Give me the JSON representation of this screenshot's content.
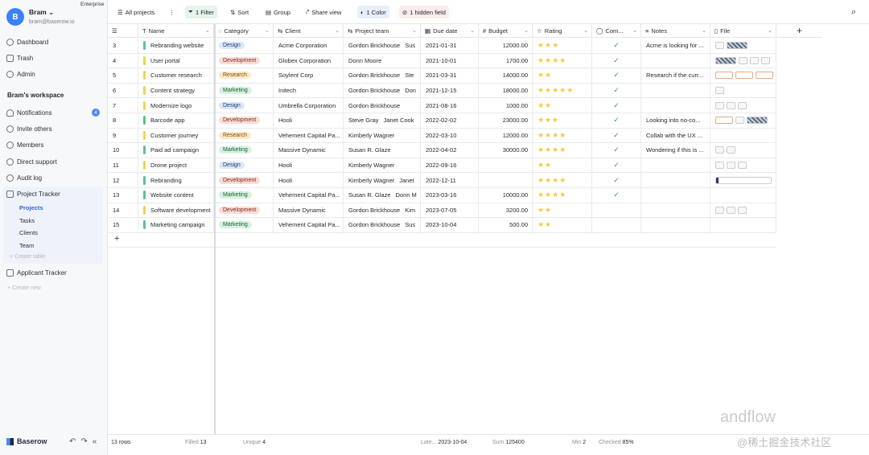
{
  "sidebar": {
    "avatar_letter": "B",
    "user_name": "Bram",
    "user_email": "bram@baserow.io",
    "plan": "Enterprise",
    "nav": [
      "Dashboard",
      "Trash",
      "Admin"
    ],
    "workspace_title": "Bram's workspace",
    "workspace_items": [
      "Notifications",
      "Invite others",
      "Members",
      "Direct support",
      "Audit log"
    ],
    "notifications_count": "4",
    "database": "Project Tracker",
    "tables": [
      "Projects",
      "Tasks",
      "Clients",
      "Team"
    ],
    "create_table": "+ Create table",
    "database2": "Applicant Tracker",
    "create_new": "+ Create new",
    "brand": "Baserow"
  },
  "toolbar": {
    "view": "All projects",
    "filter": "1 Filter",
    "sort": "Sort",
    "group": "Group",
    "share": "Share view",
    "color": "1 Color",
    "hidden": "1 hidden field"
  },
  "columns": {
    "name": "Name",
    "category": "Category",
    "client": "Client",
    "team": "Project team",
    "due": "Due date",
    "budget": "Budget",
    "rating": "Rating",
    "completed": "Com...",
    "notes": "Notes",
    "file": "File"
  },
  "rows": [
    {
      "id": "3",
      "name": "Rebranding website",
      "category": "Design",
      "client": "Acme Corporation",
      "team": "Gordon Brickhouse",
      "team2": "Sus",
      "due": "2021-01-31",
      "budget": "12000.00",
      "rating": 3,
      "done": true,
      "notes": "Acme is looking for ...",
      "file": "img"
    },
    {
      "id": "4",
      "name": "User portal",
      "category": "Development",
      "client": "Globex Corporation",
      "team": "Donn Moore",
      "team2": "",
      "due": "2021-10-01",
      "budget": "1700.00",
      "rating": 4,
      "done": true,
      "notes": "",
      "file": "mixed"
    },
    {
      "id": "5",
      "name": "Customer research",
      "category": "Research",
      "client": "Soylent Corp",
      "team": "Gordon Brickhouse",
      "team2": "Ste",
      "due": "2021-03-31",
      "budget": "14000.00",
      "rating": 2,
      "done": true,
      "notes": "Research if the curr...",
      "file": "wide"
    },
    {
      "id": "6",
      "name": "Content strategy",
      "category": "Marketing",
      "client": "Initech",
      "team": "Gordon Brickhouse",
      "team2": "Don",
      "due": "2021-12-15",
      "budget": "18000.00",
      "rating": 5,
      "done": true,
      "notes": "",
      "file": "one"
    },
    {
      "id": "7",
      "name": "Modernize logo",
      "category": "Design",
      "client": "Umbrella Corporation",
      "team": "Gordon Brickhouse",
      "team2": "",
      "due": "2021-08-16",
      "budget": "1000.00",
      "rating": 2,
      "done": true,
      "notes": "",
      "file": "three"
    },
    {
      "id": "8",
      "name": "Barcode app",
      "category": "Development",
      "client": "Hooli",
      "team": "Steve Gray",
      "team2": "Janet Cook",
      "due": "2022-02-02",
      "budget": "23000.00",
      "rating": 3,
      "done": true,
      "notes": "Looking into no-co...",
      "file": "imgmix"
    },
    {
      "id": "9",
      "name": "Customer journey",
      "category": "Research",
      "client": "Vehement Capital Pa...",
      "team": "Kimberly Wagner",
      "team2": "",
      "due": "2022-03-10",
      "budget": "12000.00",
      "rating": 4,
      "done": true,
      "notes": "Collab with the UX ...",
      "file": ""
    },
    {
      "id": "10",
      "name": "Paid ad campaign",
      "category": "Marketing",
      "client": "Massive Dynamic",
      "team": "Susan R. Glaze",
      "team2": "",
      "due": "2022-04-02",
      "budget": "30000.00",
      "rating": 4,
      "done": true,
      "notes": "Wondering if this is ...",
      "file": "two"
    },
    {
      "id": "11",
      "name": "Drone project",
      "category": "Design",
      "client": "Hooli",
      "team": "Kimberly Wagner",
      "team2": "",
      "due": "2022-09-16",
      "budget": "",
      "rating": 2,
      "done": true,
      "notes": "",
      "file": "three"
    },
    {
      "id": "12",
      "name": "Rebranding",
      "category": "Development",
      "client": "Hooli",
      "team": "Kimberly Wagner",
      "team2": "Janet",
      "due": "2022-12-11",
      "budget": "",
      "rating": 4,
      "done": true,
      "notes": "",
      "file": "doc"
    },
    {
      "id": "13",
      "name": "Website content",
      "category": "Marketing",
      "client": "Vehement Capital Pa...",
      "team": "Susan R. Glaze",
      "team2": "Donn M",
      "due": "2023-03-16",
      "budget": "10000.00",
      "rating": 4,
      "done": true,
      "notes": "",
      "file": ""
    },
    {
      "id": "14",
      "name": "Software development",
      "category": "Development",
      "client": "Massive Dynamic",
      "team": "Gordon Brickhouse",
      "team2": "Kim",
      "due": "2023-07-05",
      "budget": "3200.00",
      "rating": 2,
      "done": false,
      "notes": "",
      "file": "three"
    },
    {
      "id": "15",
      "name": "Marketing campaign",
      "category": "Marketing",
      "client": "Vehement Capital Pa...",
      "team": "Gordon Brickhouse",
      "team2": "Sus",
      "due": "2023-10-04",
      "budget": "500.00",
      "rating": 2,
      "done": false,
      "notes": "",
      "file": ""
    }
  ],
  "footer": {
    "rows": "13 rows",
    "filled_label": "Filled",
    "filled": "13",
    "unique_label": "Unique",
    "unique": "4",
    "latest_label": "Late...",
    "latest": "2023-10-04",
    "sum_label": "Sum",
    "sum": "125400",
    "min_label": "Min",
    "min": "2",
    "checked_label": "Checked",
    "checked": "85%"
  },
  "watermark": {
    "line1": "andflow",
    "line2": "@稀土掘金技术社区"
  },
  "colors": {
    "accent": "#4b8bf5",
    "brand": "#1f2a44",
    "check": "#2f9e6a",
    "star": "#f5c945"
  }
}
